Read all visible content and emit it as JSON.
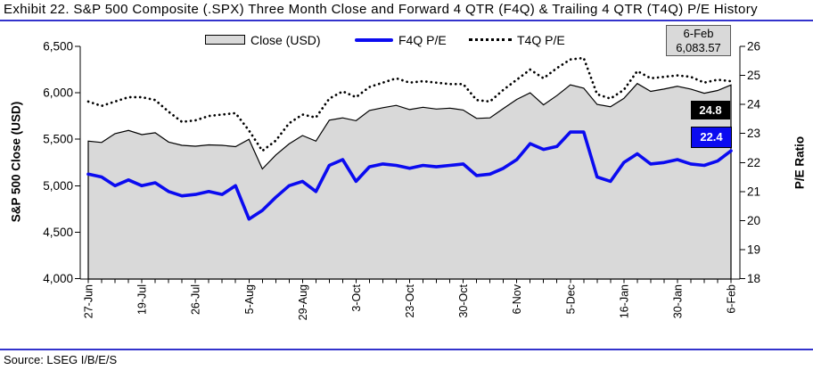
{
  "title": "Exhibit 22. S&P 500 Composite (.SPX) Three Month Close and Forward 4 QTR (F4Q) & Trailing 4 QTR (T4Q) P/E History",
  "source": "Source: LSEG I/B/E/S",
  "legend": {
    "items": [
      {
        "label": "Close (USD)",
        "swatch": "gray-area-swatch"
      },
      {
        "label": "F4Q P/E",
        "swatch": "blue-line-swatch"
      },
      {
        "label": "T4Q P/E",
        "swatch": "black-dotted-swatch"
      }
    ]
  },
  "axes": {
    "left_title": "S&P 500 Close (USD)",
    "right_title": "P/E Ratio",
    "left_ticks": [
      "6,500",
      "6,000",
      "5,500",
      "5,000",
      "4,500",
      "4,000"
    ],
    "left_tick_values": [
      6500,
      6000,
      5500,
      5000,
      4500,
      4000
    ],
    "right_ticks": [
      "26",
      "25",
      "24",
      "23",
      "22",
      "21",
      "20",
      "19",
      "18"
    ],
    "right_tick_values": [
      26,
      25,
      24,
      23,
      22,
      21,
      20,
      19,
      18
    ]
  },
  "annotations": {
    "last_close": {
      "date": "6-Feb",
      "value": "6,083.57"
    },
    "t4q_last": "24.8",
    "f4q_last": "22.4"
  },
  "colors": {
    "area_fill": "#d9d9d9",
    "area_stroke": "#000000",
    "f4q_line": "#0b0bf0",
    "t4q_line": "#000000",
    "blue_rule": "#3333cc",
    "t4q_label_bg": "#000000",
    "f4q_label_bg": "#0b0bf0"
  },
  "chart_data": {
    "type": "area+line",
    "title": "S&P 500 Three Month Close and Forward/Trailing 4 QTR P/E History",
    "x_axis_labels": [
      "27-Jun",
      "19-Jul",
      "26-Jul",
      "5-Aug",
      "29-Aug",
      "3-Oct",
      "23-Oct",
      "30-Oct",
      "6-Nov",
      "5-Dec",
      "16-Jan",
      "30-Jan",
      "6-Feb"
    ],
    "label_every_n_points": 4,
    "left_axis_range": [
      4000,
      6500
    ],
    "right_axis_range": [
      18,
      26
    ],
    "grid": false,
    "legend_position": "top",
    "series": [
      {
        "name": "Close (USD)",
        "axis": "left",
        "style": "area",
        "values": [
          5480,
          5465,
          5560,
          5595,
          5550,
          5570,
          5470,
          5435,
          5425,
          5440,
          5435,
          5420,
          5500,
          5180,
          5330,
          5450,
          5540,
          5480,
          5705,
          5730,
          5700,
          5810,
          5840,
          5865,
          5820,
          5845,
          5825,
          5835,
          5815,
          5725,
          5730,
          5830,
          5929,
          6000,
          5870,
          5970,
          6085,
          6050,
          5875,
          5850,
          5940,
          6100,
          6015,
          6040,
          6070,
          6040,
          5995,
          6025,
          6084
        ]
      },
      {
        "name": "F4Q P/E",
        "axis": "right",
        "style": "solid-line",
        "values": [
          21.6,
          21.5,
          21.2,
          21.4,
          21.2,
          21.3,
          21.0,
          20.85,
          20.9,
          21.0,
          20.9,
          21.2,
          20.05,
          20.35,
          20.8,
          21.2,
          21.35,
          21.0,
          21.9,
          22.1,
          21.35,
          21.85,
          21.95,
          21.9,
          21.8,
          21.9,
          21.85,
          21.9,
          21.95,
          21.55,
          21.6,
          21.8,
          22.1,
          22.65,
          22.45,
          22.55,
          23.05,
          23.05,
          21.5,
          21.35,
          22.0,
          22.3,
          21.95,
          22.0,
          22.1,
          21.95,
          21.9,
          22.05,
          22.4
        ]
      },
      {
        "name": "T4Q P/E",
        "axis": "right",
        "style": "dotted-line",
        "values": [
          24.1,
          23.95,
          24.1,
          24.25,
          24.25,
          24.15,
          23.75,
          23.4,
          23.45,
          23.6,
          23.65,
          23.7,
          23.1,
          22.4,
          22.75,
          23.35,
          23.65,
          23.55,
          24.2,
          24.45,
          24.25,
          24.6,
          24.75,
          24.9,
          24.75,
          24.8,
          24.75,
          24.7,
          24.7,
          24.15,
          24.1,
          24.5,
          24.85,
          25.2,
          24.9,
          25.25,
          25.55,
          25.6,
          24.35,
          24.2,
          24.5,
          25.15,
          24.9,
          24.95,
          25.0,
          24.95,
          24.75,
          24.85,
          24.8
        ]
      }
    ],
    "last_point": {
      "date": "6-Feb",
      "close": 6083.57,
      "f4q_pe": 22.4,
      "t4q_pe": 24.8
    }
  }
}
